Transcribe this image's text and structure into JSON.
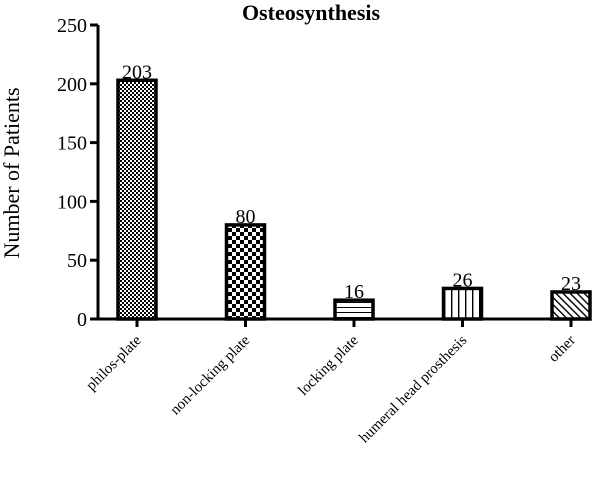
{
  "chart_data": {
    "type": "bar",
    "title": "Osteosynthesis",
    "xlabel": "",
    "ylabel": "Number of  Patients",
    "ylim": [
      0,
      250
    ],
    "yticks": [
      0,
      50,
      100,
      150,
      200,
      250
    ],
    "grid": false,
    "legend": "none",
    "categories": [
      "philos-plate",
      "non-locking plate",
      "locking plate",
      "humeral head prosthesis",
      "other"
    ],
    "values": [
      203,
      80,
      16,
      26,
      23
    ],
    "data_labels": [
      "203",
      "80",
      "16",
      "26",
      "23"
    ],
    "bar_patterns": [
      "fine-checker",
      "coarse-checker",
      "horizontal-lines",
      "vertical-lines",
      "diagonal-lines"
    ],
    "colors": {
      "bar_stroke": "#000000",
      "pattern": "#000000",
      "background": "#ffffff"
    }
  }
}
